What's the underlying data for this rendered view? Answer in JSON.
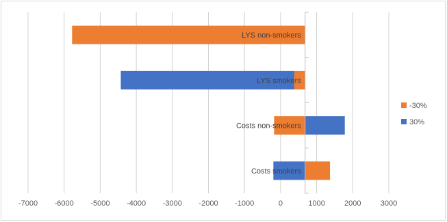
{
  "chart_data": {
    "type": "bar",
    "orientation": "horizontal",
    "stacked": true,
    "categories": [
      "Costs smokers",
      "Costs non-smokers",
      "LYS smokers",
      "LYS non-smokers"
    ],
    "series": [
      {
        "name": "-30%",
        "color": "#ed7d31",
        "ranges": [
          [
            680,
            1370
          ],
          [
            -180,
            680
          ],
          [
            380,
            680
          ],
          [
            -5780,
            680
          ]
        ]
      },
      {
        "name": "30%",
        "color": "#4472c4",
        "ranges": [
          [
            -200,
            680
          ],
          [
            680,
            1780
          ],
          [
            -4430,
            380
          ],
          null
        ]
      }
    ],
    "xlim": [
      -7000,
      3000
    ],
    "xticks": [
      "-7000",
      "-6000",
      "-5000",
      "-4000",
      "-3000",
      "-2000",
      "-1000",
      "0",
      "1000",
      "2000",
      "3000"
    ],
    "xtick_values": [
      -7000,
      -6000,
      -5000,
      -4000,
      -3000,
      -2000,
      -1000,
      0,
      1000,
      2000,
      3000
    ],
    "grid": true,
    "legend_position": "right",
    "category_axis_at": 680,
    "title": "",
    "xlabel": "",
    "ylabel": ""
  }
}
